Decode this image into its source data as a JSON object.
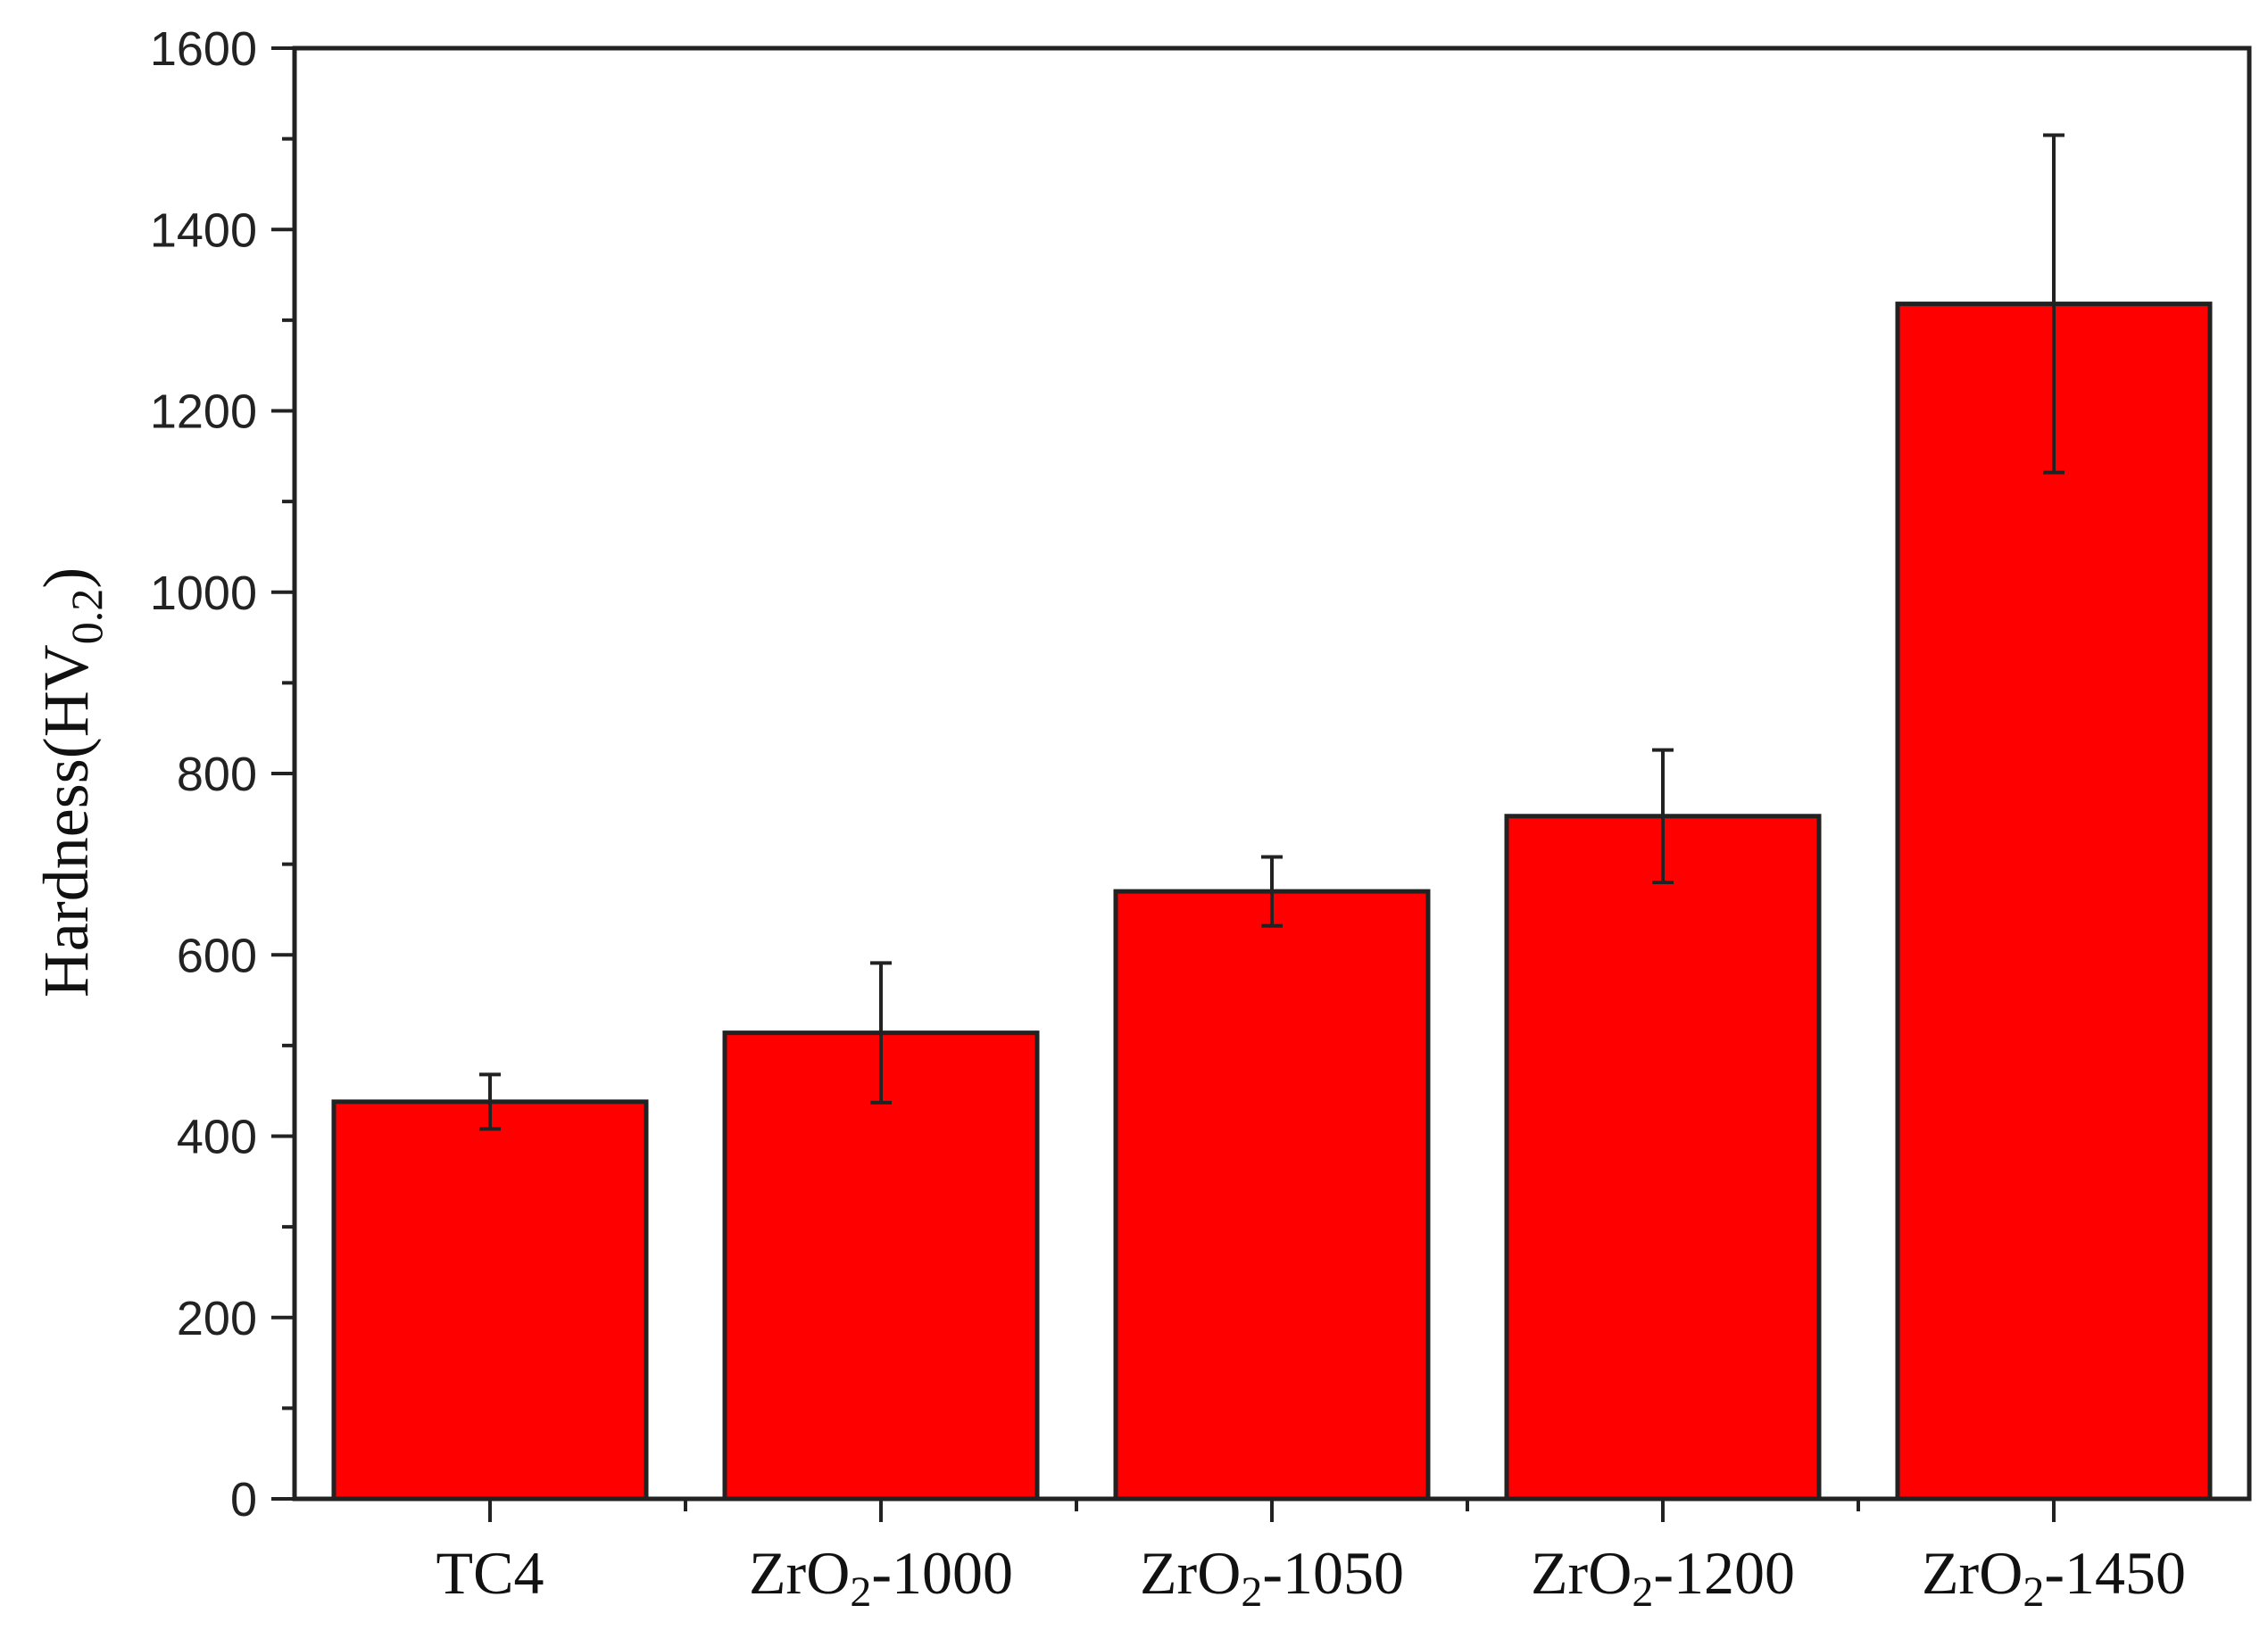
{
  "chart_data": {
    "type": "bar",
    "title": "",
    "xlabel": "",
    "ylabel": {
      "text": "Hardness(HV",
      "subscript": "0.2",
      "suffix": ")"
    },
    "categories": [
      {
        "base": "TC4",
        "sub": "",
        "suffix": ""
      },
      {
        "base": "ZrO",
        "sub": "2",
        "suffix": "-1000"
      },
      {
        "base": "ZrO",
        "sub": "2",
        "suffix": "-1050"
      },
      {
        "base": "ZrO",
        "sub": "2",
        "suffix": "-1200"
      },
      {
        "base": "ZrO",
        "sub": "2",
        "suffix": "-1450"
      }
    ],
    "values": [
      438,
      514,
      670,
      753,
      1318
    ],
    "errors": [
      30,
      77,
      38,
      73,
      186
    ],
    "ylim": [
      0,
      1600
    ],
    "yticks": [
      "0",
      "200",
      "400",
      "600",
      "800",
      "1000",
      "1200",
      "1400",
      "1600"
    ],
    "grid": false,
    "legend": "none",
    "colors": {
      "bar": "#ff0000",
      "bar_edge": "#222222",
      "axis": "#222222",
      "error_bar": "#222222"
    }
  }
}
